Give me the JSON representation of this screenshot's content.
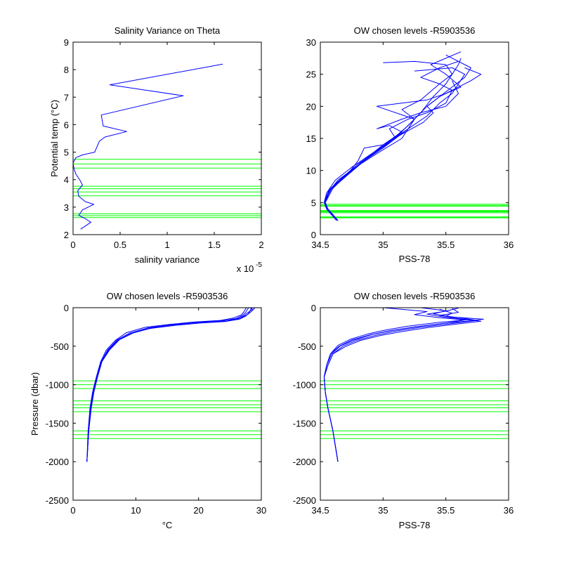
{
  "colors": {
    "background": "#ffffff",
    "axes": "#000000",
    "profiles": "#0000ff",
    "chosen_levels": "#00ff00"
  },
  "chart_data": [
    {
      "type": "line",
      "title": "Salinity Variance on Theta",
      "xlabel": "salinity variance",
      "ylabel": "Potential temp (°C)",
      "x_scale_label": "x 10",
      "x_scale_exponent": "-5",
      "xlim": [
        0,
        2
      ],
      "ylim": [
        2,
        9
      ],
      "xticks": [
        0,
        0.5,
        1,
        1.5,
        2
      ],
      "xticklabels": [
        "0",
        "0.5",
        "1",
        "1.5",
        "2"
      ],
      "yticks": [
        2,
        3,
        4,
        5,
        6,
        7,
        8,
        9
      ],
      "yticklabels": [
        "2",
        "3",
        "4",
        "5",
        "6",
        "7",
        "8",
        "9"
      ],
      "series": [
        {
          "color": "#0000ff",
          "x": [
            0.08,
            0.19,
            0.12,
            0.06,
            0.1,
            0.22,
            0.13,
            0.06,
            0.05,
            0.1,
            0.07,
            0.03,
            0.01,
            0.0,
            0.03,
            0.1,
            0.23,
            0.28,
            0.34,
            0.57,
            0.32,
            0.3,
            1.17,
            0.39,
            1.59
          ],
          "y": [
            2.2,
            2.45,
            2.6,
            2.7,
            2.9,
            3.1,
            3.2,
            3.4,
            3.6,
            3.8,
            4.0,
            4.2,
            4.4,
            4.6,
            4.8,
            4.9,
            5.0,
            5.4,
            5.55,
            5.75,
            5.95,
            6.35,
            7.05,
            7.45,
            8.2
          ]
        }
      ],
      "hlines": [
        2.62,
        2.69,
        2.76,
        3.41,
        3.55,
        3.67,
        3.76,
        4.42,
        4.57,
        4.74
      ]
    },
    {
      "type": "line",
      "title": "OW chosen levels -R5903536",
      "xlabel": "PSS-78",
      "ylabel": "",
      "xlim": [
        34.5,
        36
      ],
      "ylim": [
        0,
        30
      ],
      "xticks": [
        34.5,
        35,
        35.5,
        36
      ],
      "xticklabels": [
        "34.5",
        "35",
        "35.5",
        "36"
      ],
      "yticks": [
        0,
        5,
        10,
        15,
        20,
        25,
        30
      ],
      "yticklabels": [
        "0",
        "5",
        "10",
        "15",
        "20",
        "25",
        "30"
      ],
      "series": [
        {
          "color": "#0000ff",
          "x": [
            34.64,
            34.56,
            34.53,
            34.55,
            34.62,
            34.75,
            34.9,
            35.05,
            35.2,
            35.3,
            35.4,
            35.5,
            35.55,
            35.6,
            35.62
          ],
          "y": [
            2.2,
            4.0,
            5.0,
            6.5,
            8.5,
            10.5,
            12.5,
            14.5,
            17.0,
            19.0,
            21.5,
            23.5,
            25.0,
            26.5,
            27.5
          ]
        },
        {
          "color": "#0000ff",
          "x": [
            34.64,
            34.56,
            34.53,
            34.56,
            34.64,
            34.78,
            34.95,
            35.12,
            35.25,
            35.35,
            35.45,
            35.55,
            35.7,
            35.78,
            35.65
          ],
          "y": [
            2.2,
            4.0,
            5.0,
            6.5,
            8.5,
            10.5,
            13.0,
            15.5,
            18.0,
            20.0,
            21.5,
            22.5,
            24.0,
            25.0,
            26.0
          ]
        },
        {
          "color": "#0000ff",
          "x": [
            34.63,
            34.55,
            34.54,
            34.58,
            34.7,
            34.85,
            35.0,
            35.1,
            35.05,
            35.2,
            35.35,
            35.5,
            35.55,
            35.45,
            35.3,
            35.45,
            35.6
          ],
          "y": [
            2.2,
            4.0,
            5.2,
            7.0,
            9.0,
            11.5,
            13.5,
            15.0,
            16.5,
            18.0,
            19.0,
            20.5,
            22.5,
            23.5,
            24.5,
            26.0,
            27.0
          ]
        },
        {
          "color": "#0000ff",
          "x": [
            34.64,
            34.56,
            34.53,
            34.6,
            34.72,
            34.8,
            34.85,
            35.0,
            35.15,
            35.05,
            34.95,
            35.15,
            35.3,
            35.5,
            35.6,
            35.55
          ],
          "y": [
            2.2,
            4.0,
            5.0,
            7.5,
            9.5,
            11.5,
            13.5,
            14.0,
            16.0,
            17.0,
            16.5,
            18.0,
            19.0,
            20.0,
            22.0,
            24.0
          ]
        },
        {
          "color": "#0000ff",
          "x": [
            34.63,
            34.55,
            34.53,
            34.57,
            34.68,
            34.82,
            34.98,
            35.15,
            35.25,
            34.95,
            35.15,
            35.35,
            35.5,
            35.62,
            35.5,
            35.38,
            35.62
          ],
          "y": [
            2.2,
            4.0,
            5.0,
            7.0,
            9.0,
            11.0,
            13.0,
            15.0,
            18.0,
            20.0,
            20.5,
            21.0,
            22.0,
            23.0,
            25.0,
            26.5,
            28.5
          ]
        },
        {
          "color": "#0000ff",
          "x": [
            34.64,
            34.56,
            34.54,
            34.58,
            34.68,
            34.8,
            34.95,
            35.1,
            35.2,
            35.25,
            35.15,
            35.3,
            35.45,
            35.55,
            35.5,
            35.25,
            35.0
          ],
          "y": [
            2.2,
            4.0,
            5.0,
            7.0,
            9.0,
            11.0,
            13.0,
            15.0,
            16.5,
            18.0,
            19.5,
            21.0,
            23.5,
            25.0,
            26.5,
            27.0,
            26.8
          ]
        },
        {
          "color": "#0000ff",
          "x": [
            34.64,
            34.56,
            34.54,
            34.6,
            34.72,
            34.88,
            35.05,
            35.2,
            35.35,
            35.45,
            35.55,
            35.6,
            35.65,
            35.55,
            35.25
          ],
          "y": [
            2.2,
            4.0,
            5.0,
            7.2,
            9.5,
            12.0,
            14.5,
            16.5,
            18.5,
            20.5,
            22.0,
            23.5,
            25.0,
            26.0,
            25.5
          ]
        },
        {
          "color": "#0000ff",
          "x": [
            34.64,
            34.56,
            34.53,
            34.58,
            34.7,
            34.84,
            35.0,
            35.18,
            35.32,
            35.4,
            35.35,
            35.45,
            35.55,
            35.65,
            35.7,
            35.5
          ],
          "y": [
            2.2,
            4.0,
            5.0,
            7.0,
            9.0,
            11.5,
            14.0,
            16.0,
            17.5,
            19.0,
            20.0,
            21.5,
            23.0,
            24.5,
            26.0,
            28.0
          ]
        }
      ],
      "hlines": [
        2.62,
        2.69,
        2.76,
        3.41,
        3.55,
        3.67,
        3.76,
        4.42,
        4.57,
        4.74
      ]
    },
    {
      "type": "line",
      "title": "OW chosen levels -R5903536",
      "xlabel": "°C",
      "ylabel": "Pressure (dbar)",
      "xlim": [
        0,
        30
      ],
      "ylim": [
        -2500,
        0
      ],
      "xticks": [
        0,
        10,
        20,
        30
      ],
      "xticklabels": [
        "0",
        "10",
        "20",
        "30"
      ],
      "yticks": [
        -2500,
        -2000,
        -1500,
        -1000,
        -500,
        0
      ],
      "yticklabels": [
        "-2500",
        "-2000",
        "-1500",
        "-1000",
        "-500",
        "0"
      ],
      "series": [
        {
          "color": "#0000ff",
          "x": [
            2.2,
            2.5,
            2.8,
            3.2,
            3.8,
            4.5,
            5.5,
            7.0,
            9.0,
            12.0,
            16.0,
            20.0,
            24.0,
            26.0,
            27.0,
            27.5,
            27.8,
            28.0
          ],
          "y": [
            -2000,
            -1600,
            -1300,
            -1100,
            -900,
            -700,
            -550,
            -420,
            -330,
            -260,
            -220,
            -190,
            -170,
            -140,
            -100,
            -60,
            -20,
            0
          ]
        },
        {
          "color": "#0000ff",
          "x": [
            2.2,
            2.5,
            2.9,
            3.3,
            3.9,
            4.6,
            5.7,
            7.2,
            9.5,
            12.5,
            16.5,
            20.5,
            24.5,
            26.5,
            27.5,
            28.0,
            28.3,
            28.5
          ],
          "y": [
            -2000,
            -1600,
            -1300,
            -1100,
            -900,
            -700,
            -550,
            -420,
            -330,
            -265,
            -225,
            -195,
            -175,
            -150,
            -110,
            -70,
            -25,
            0
          ]
        },
        {
          "color": "#0000ff",
          "x": [
            2.2,
            2.4,
            2.7,
            3.1,
            3.7,
            4.4,
            5.3,
            6.8,
            8.5,
            11.5,
            15.5,
            19.5,
            23.5,
            25.5,
            26.8,
            27.2,
            27.5,
            27.6
          ],
          "y": [
            -2000,
            -1600,
            -1300,
            -1100,
            -900,
            -700,
            -550,
            -420,
            -325,
            -255,
            -215,
            -185,
            -165,
            -135,
            -95,
            -55,
            -15,
            0
          ]
        },
        {
          "color": "#0000ff",
          "x": [
            2.2,
            2.5,
            2.8,
            3.2,
            3.8,
            4.5,
            5.6,
            7.1,
            9.2,
            12.2,
            16.2,
            20.2,
            24.2,
            26.2,
            27.2,
            27.9,
            28.6,
            28.2
          ],
          "y": [
            -2000,
            -1600,
            -1300,
            -1100,
            -900,
            -700,
            -550,
            -425,
            -335,
            -270,
            -230,
            -200,
            -180,
            -150,
            -105,
            -60,
            -20,
            0
          ]
        },
        {
          "color": "#0000ff",
          "x": [
            2.2,
            2.5,
            2.9,
            3.3,
            3.9,
            4.6,
            5.8,
            7.4,
            9.8,
            13.0,
            17.0,
            21.0,
            25.0,
            26.8,
            27.8,
            28.4,
            28.9,
            28.7
          ],
          "y": [
            -2000,
            -1600,
            -1300,
            -1100,
            -900,
            -700,
            -550,
            -415,
            -320,
            -250,
            -210,
            -180,
            -160,
            -130,
            -90,
            -50,
            -10,
            0
          ]
        }
      ],
      "hlines": [
        -950,
        -1000,
        -1050,
        -1210,
        -1260,
        -1300,
        -1350,
        -1600,
        -1650,
        -1700
      ]
    },
    {
      "type": "line",
      "title": "OW chosen levels -R5903536",
      "xlabel": "PSS-78",
      "ylabel": "",
      "xlim": [
        34.5,
        36
      ],
      "ylim": [
        -2500,
        0
      ],
      "xticks": [
        34.5,
        35,
        35.5,
        36
      ],
      "xticklabels": [
        "34.5",
        "35",
        "35.5",
        "36"
      ],
      "yticks": [
        -2500,
        -2000,
        -1500,
        -1000,
        -500,
        0
      ],
      "yticklabels": [
        "-2500",
        "-2000",
        "-1500",
        "-1000",
        "-500",
        "0"
      ],
      "series": [
        {
          "color": "#0000ff",
          "x": [
            34.64,
            34.6,
            34.56,
            34.54,
            34.53,
            34.55,
            34.58,
            34.65,
            34.75,
            34.9,
            35.05,
            35.25,
            35.5,
            35.7,
            35.8,
            35.55,
            35.4,
            35.5,
            35.3
          ],
          "y": [
            -2000,
            -1600,
            -1300,
            -1100,
            -900,
            -750,
            -600,
            -500,
            -420,
            -350,
            -300,
            -250,
            -200,
            -170,
            -150,
            -120,
            -80,
            -40,
            0
          ]
        },
        {
          "color": "#0000ff",
          "x": [
            34.64,
            34.6,
            34.56,
            34.54,
            34.53,
            34.56,
            34.6,
            34.68,
            34.8,
            34.95,
            35.1,
            35.3,
            35.55,
            35.75,
            35.65,
            35.45,
            35.6,
            35.55
          ],
          "y": [
            -2000,
            -1600,
            -1300,
            -1100,
            -900,
            -750,
            -600,
            -500,
            -420,
            -355,
            -305,
            -255,
            -205,
            -165,
            -140,
            -100,
            -60,
            -10
          ]
        },
        {
          "color": "#0000ff",
          "x": [
            34.64,
            34.6,
            34.56,
            34.54,
            34.53,
            34.55,
            34.59,
            34.66,
            34.78,
            34.92,
            35.08,
            35.28,
            35.52,
            35.65,
            35.45,
            35.25,
            35.35,
            35.0
          ],
          "y": [
            -2000,
            -1600,
            -1300,
            -1100,
            -900,
            -750,
            -600,
            -495,
            -415,
            -345,
            -295,
            -245,
            -195,
            -160,
            -130,
            -90,
            -50,
            0
          ]
        },
        {
          "color": "#0000ff",
          "x": [
            34.64,
            34.6,
            34.56,
            34.54,
            34.53,
            34.56,
            34.6,
            34.7,
            34.82,
            34.98,
            35.15,
            35.35,
            35.6,
            35.78,
            35.6,
            35.5,
            35.55,
            35.45
          ],
          "y": [
            -2000,
            -1600,
            -1300,
            -1100,
            -900,
            -750,
            -600,
            -505,
            -425,
            -360,
            -310,
            -260,
            -210,
            -175,
            -145,
            -110,
            -70,
            -20
          ]
        },
        {
          "color": "#0000ff",
          "x": [
            34.64,
            34.6,
            34.56,
            34.54,
            34.53,
            34.55,
            34.58,
            34.64,
            34.74,
            34.88,
            35.02,
            35.2,
            35.45,
            35.68,
            35.5,
            35.35,
            35.5,
            35.6
          ],
          "y": [
            -2000,
            -1600,
            -1300,
            -1100,
            -900,
            -750,
            -600,
            -490,
            -410,
            -340,
            -290,
            -240,
            -190,
            -155,
            -125,
            -85,
            -45,
            -5
          ]
        }
      ],
      "hlines": [
        -950,
        -1000,
        -1050,
        -1210,
        -1260,
        -1300,
        -1350,
        -1600,
        -1650,
        -1700
      ]
    }
  ]
}
